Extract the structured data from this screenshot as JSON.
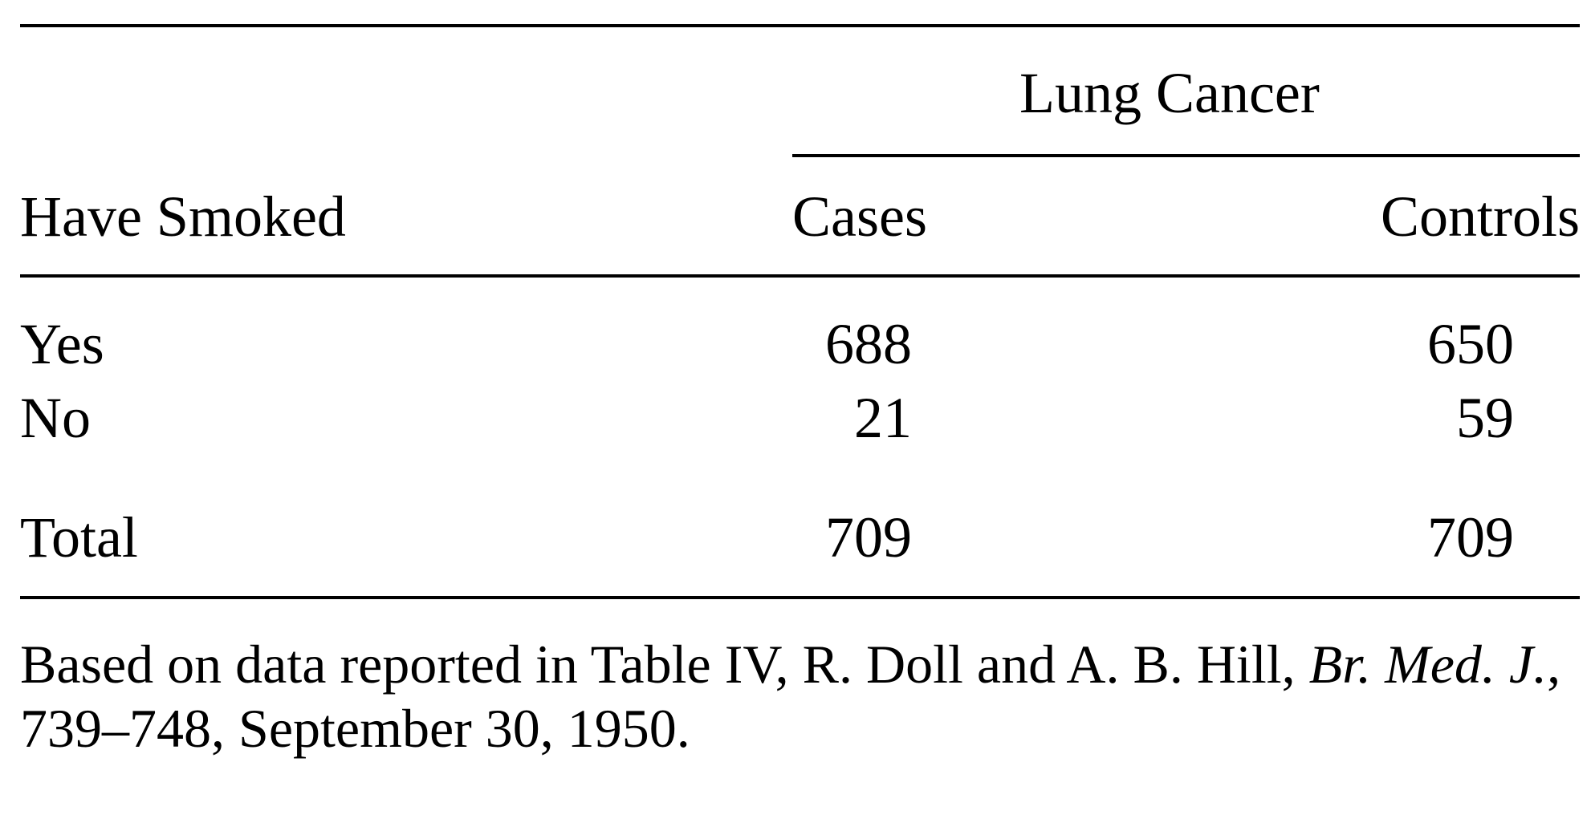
{
  "table": {
    "spanner": "Lung Cancer",
    "row_header": "Have Smoked",
    "columns": [
      "Cases",
      "Controls"
    ],
    "rows": [
      {
        "label": "Yes",
        "cases": "688",
        "controls": "650"
      },
      {
        "label": "No",
        "cases": "21",
        "controls": "59"
      }
    ],
    "total": {
      "label": "Total",
      "cases": "709",
      "controls": "709"
    }
  },
  "footnote": {
    "text_before": "Based on data reported in Table IV, R. Doll and A. B. Hill,",
    "journal": "Br. Med. J.",
    "text_after": ", 739–748, September 30, 1950."
  }
}
